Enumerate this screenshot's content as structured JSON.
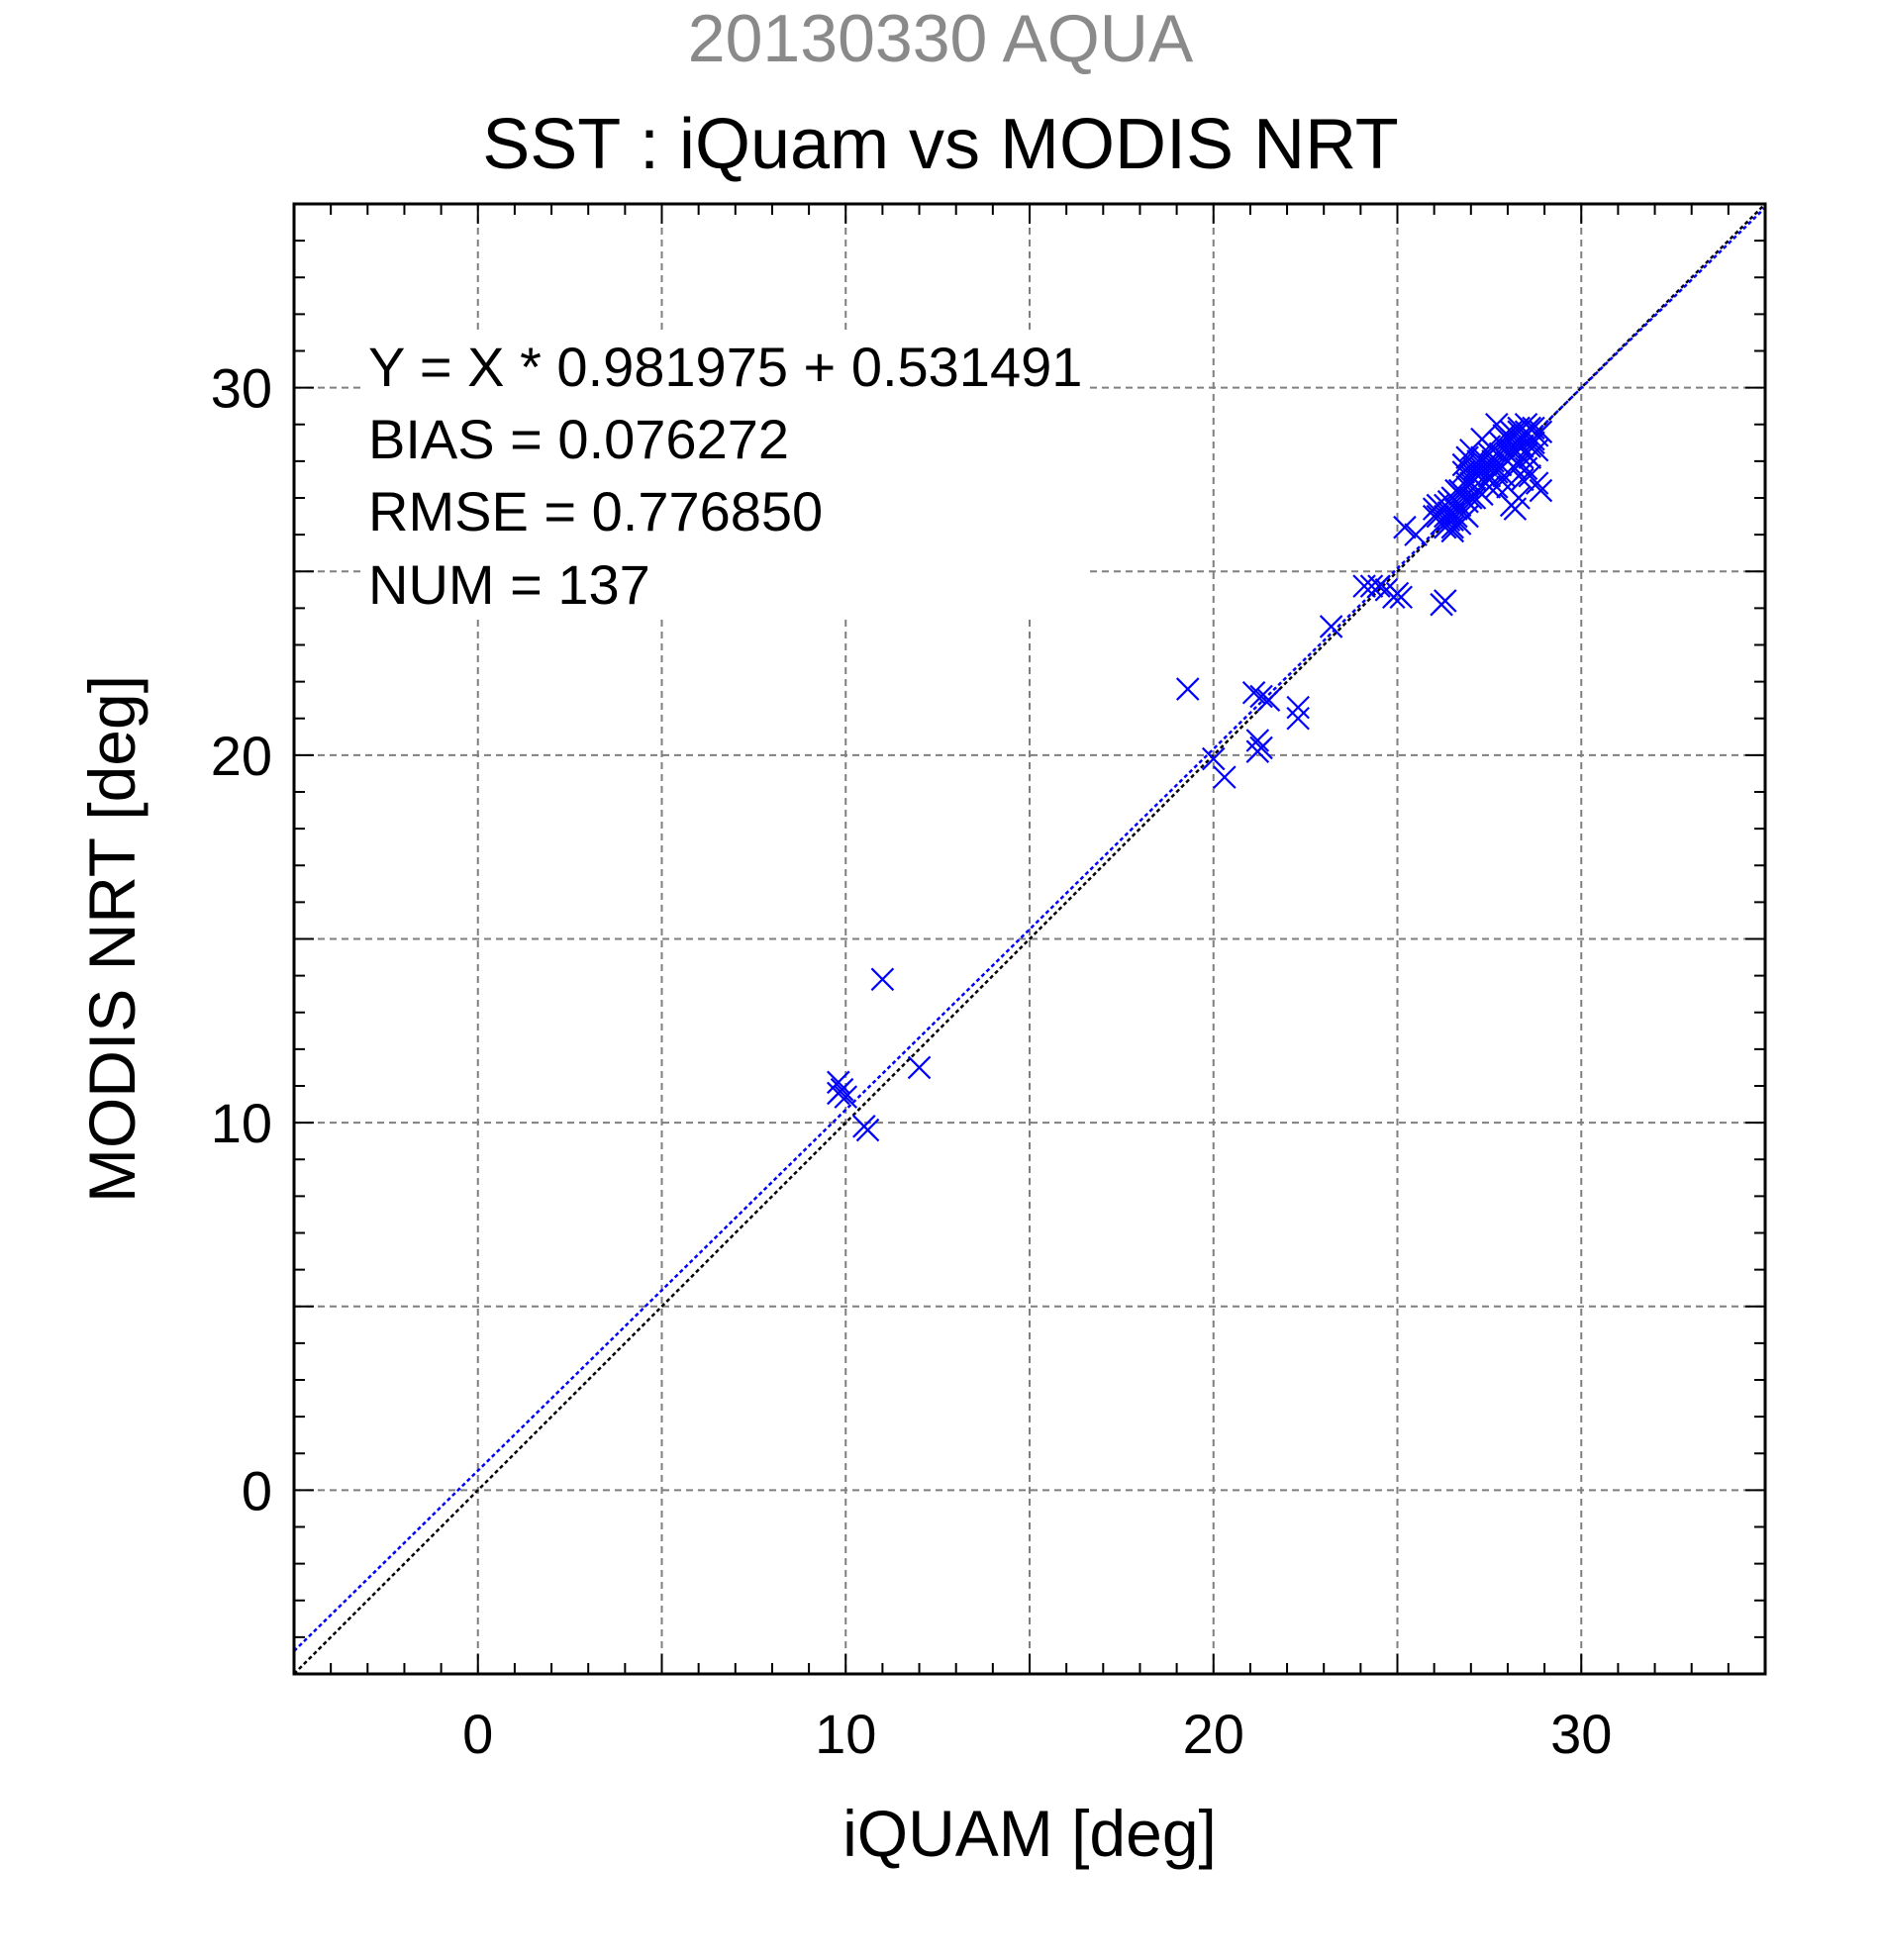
{
  "header": {
    "supertitle": "20130330 AQUA",
    "title": "SST : iQuam vs MODIS NRT"
  },
  "stats": [
    "Y = X * 0.981975 + 0.531491",
    "BIAS = 0.076272",
    "RMSE = 0.776850",
    "NUM = 137"
  ],
  "colors": {
    "points": "#0000ff",
    "fit_line": "#0000ff",
    "identity_line": "#000000",
    "grid": "#7f7f7f",
    "supertitle": "#8a8a8a"
  },
  "chart_data": {
    "type": "scatter",
    "title": "SST : iQuam vs MODIS NRT",
    "xlabel": "iQUAM [deg]",
    "ylabel": "MODIS NRT [deg]",
    "xlim": [
      -5,
      35
    ],
    "ylim": [
      -5,
      35
    ],
    "xticks": [
      0,
      10,
      20,
      30
    ],
    "yticks": [
      0,
      10,
      20,
      30
    ],
    "grid": true,
    "marker": "x",
    "fit": {
      "slope": 0.981975,
      "intercept": 0.531491
    },
    "identity_line": true,
    "points": [
      [
        9.8,
        11.1
      ],
      [
        9.9,
        10.9
      ],
      [
        10.0,
        10.7
      ],
      [
        9.8,
        10.8
      ],
      [
        10.5,
        9.9
      ],
      [
        10.6,
        9.8
      ],
      [
        11.0,
        13.9
      ],
      [
        12.0,
        11.5
      ],
      [
        19.3,
        21.8
      ],
      [
        20.0,
        19.9
      ],
      [
        20.3,
        19.4
      ],
      [
        21.1,
        21.7
      ],
      [
        21.3,
        21.6
      ],
      [
        21.2,
        20.4
      ],
      [
        21.3,
        20.2
      ],
      [
        21.2,
        20.1
      ],
      [
        21.5,
        21.5
      ],
      [
        22.3,
        21.3
      ],
      [
        22.3,
        21.0
      ],
      [
        23.2,
        23.5
      ],
      [
        24.1,
        24.6
      ],
      [
        24.3,
        24.6
      ],
      [
        24.5,
        24.6
      ],
      [
        24.7,
        24.5
      ],
      [
        24.9,
        24.3
      ],
      [
        25.0,
        24.4
      ],
      [
        25.1,
        24.3
      ],
      [
        25.2,
        26.2
      ],
      [
        25.5,
        26.0
      ],
      [
        26.0,
        26.5
      ],
      [
        26.2,
        24.1
      ],
      [
        26.3,
        24.2
      ],
      [
        26.1,
        26.8
      ],
      [
        26.3,
        26.5
      ],
      [
        26.4,
        26.9
      ],
      [
        26.5,
        26.4
      ],
      [
        26.6,
        26.7
      ],
      [
        26.7,
        27.1
      ],
      [
        26.8,
        26.6
      ],
      [
        26.9,
        27.3
      ],
      [
        26.5,
        26.2
      ],
      [
        26.7,
        26.3
      ],
      [
        26.9,
        26.5
      ],
      [
        27.0,
        27.0
      ],
      [
        27.1,
        27.5
      ],
      [
        27.2,
        27.2
      ],
      [
        27.3,
        27.8
      ],
      [
        27.4,
        27.4
      ],
      [
        27.0,
        28.3
      ],
      [
        27.2,
        28.0
      ],
      [
        26.8,
        27.7
      ],
      [
        26.6,
        27.2
      ],
      [
        27.5,
        27.6
      ],
      [
        27.6,
        28.0
      ],
      [
        27.7,
        27.3
      ],
      [
        27.8,
        27.9
      ],
      [
        27.9,
        28.4
      ],
      [
        28.0,
        28.2
      ],
      [
        28.1,
        28.6
      ],
      [
        28.2,
        28.5
      ],
      [
        28.3,
        28.8
      ],
      [
        28.4,
        28.4
      ],
      [
        28.5,
        28.7
      ],
      [
        28.6,
        28.9
      ],
      [
        28.7,
        28.6
      ],
      [
        28.8,
        28.3
      ],
      [
        28.4,
        28.1
      ],
      [
        28.5,
        27.8
      ],
      [
        28.6,
        27.6
      ],
      [
        28.8,
        27.4
      ],
      [
        28.9,
        27.2
      ],
      [
        28.3,
        27.9
      ],
      [
        28.1,
        26.8
      ],
      [
        28.2,
        26.7
      ],
      [
        28.3,
        27.0
      ],
      [
        28.0,
        27.3
      ],
      [
        27.9,
        27.6
      ],
      [
        28.2,
        27.8
      ],
      [
        28.4,
        27.5
      ],
      [
        28.6,
        28.1
      ],
      [
        28.7,
        28.9
      ],
      [
        28.5,
        29.0
      ],
      [
        28.3,
        28.9
      ],
      [
        28.1,
        28.8
      ],
      [
        27.9,
        28.7
      ],
      [
        27.7,
        29.0
      ],
      [
        27.5,
        28.2
      ],
      [
        27.3,
        28.6
      ],
      [
        26.8,
        27.9
      ],
      [
        26.9,
        28.1
      ],
      [
        27.0,
        27.6
      ],
      [
        27.1,
        27.8
      ],
      [
        26.6,
        26.9
      ],
      [
        26.4,
        26.6
      ],
      [
        26.2,
        26.3
      ],
      [
        26.0,
        26.7
      ],
      [
        26.3,
        26.2
      ],
      [
        26.5,
        26.1
      ],
      [
        26.7,
        26.8
      ],
      [
        26.9,
        26.9
      ],
      [
        27.1,
        27.0
      ],
      [
        27.3,
        27.1
      ],
      [
        27.5,
        27.3
      ],
      [
        27.7,
        27.7
      ],
      [
        28.0,
        28.0
      ],
      [
        28.2,
        28.3
      ],
      [
        28.4,
        28.6
      ],
      [
        28.6,
        28.4
      ],
      [
        28.8,
        28.7
      ],
      [
        28.5,
        28.2
      ],
      [
        28.3,
        28.5
      ],
      [
        28.1,
        28.1
      ],
      [
        27.8,
        28.5
      ],
      [
        27.6,
        28.3
      ],
      [
        27.4,
        27.9
      ],
      [
        27.2,
        27.6
      ],
      [
        27.0,
        27.4
      ],
      [
        26.8,
        27.0
      ],
      [
        26.6,
        26.5
      ],
      [
        26.4,
        26.4
      ],
      [
        28.9,
        28.8
      ],
      [
        28.7,
        28.5
      ],
      [
        28.5,
        28.8
      ],
      [
        28.2,
        28.7
      ],
      [
        28.0,
        28.6
      ],
      [
        27.8,
        28.2
      ],
      [
        27.6,
        27.9
      ],
      [
        27.4,
        27.6
      ],
      [
        26.1,
        26.5
      ],
      [
        26.3,
        26.8
      ],
      [
        26.5,
        27.0
      ],
      [
        26.7,
        27.2
      ],
      [
        26.9,
        27.4
      ],
      [
        27.1,
        27.7
      ],
      [
        27.3,
        28.1
      ],
      [
        27.5,
        28.4
      ],
      [
        28.1,
        28.3
      ]
    ]
  }
}
